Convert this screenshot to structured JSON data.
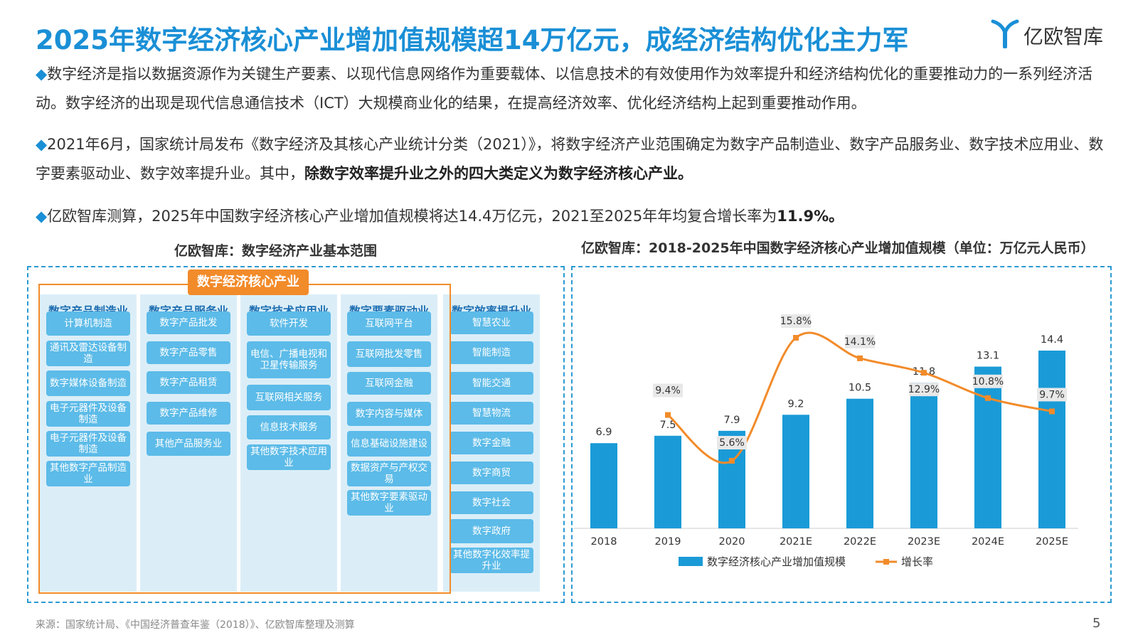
{
  "title": "2025年数字经济核心产业增加值规模超14万亿元，成经济结构优化主力军",
  "logo": {
    "text": "亿欧智库",
    "icon": "yiou-logo-icon",
    "color": "#1a8fd6"
  },
  "paragraphs": [
    {
      "bullet": "◆",
      "text": "数字经济是指以数据资源作为关键生产要素、以现代信息网络作为重要载体、以信息技术的有效使用作为效率提升和经济结构优化的重要推动力的一系列经济活动。数字经济的出现是现代信息通信技术（ICT）大规模商业化的结果，在提高经济效率、优化经济结构上起到重要推动作用。",
      "bold": ""
    },
    {
      "bullet": "◆",
      "text": "2021年6月，国家统计局发布《数字经济及其核心产业统计分类（2021）》，将数字经济产业范围确定为数字产品制造业、数字产品服务业、数字技术应用业、数字要素驱动业、数字效率提升业。其中，",
      "bold": "除数字效率提升业之外的四大类定义为数字经济核心产业。"
    },
    {
      "bullet": "◆",
      "text": "亿欧智库测算，2025年中国数字经济核心产业增加值规模将达14.4万亿元，2021至2025年年均复合增长率为",
      "bold": "11.9%。"
    }
  ],
  "left_panel": {
    "title": "亿欧智库：数字经济产业基本范围",
    "core_label": "数字经济核心产业",
    "columns": [
      {
        "title": "数字产品制造业",
        "items": [
          "计算机制造",
          "通讯及雷达设备制造",
          "数字媒体设备制造",
          "电子元器件及设备制造",
          "电子元器件及设备制造",
          "其他数字产品制造业"
        ]
      },
      {
        "title": "数字产品服务业",
        "items": [
          "数字产品批发",
          "数字产品零售",
          "数字产品租赁",
          "数字产品维修",
          "其他产品服务业"
        ]
      },
      {
        "title": "数字技术应用业",
        "items": [
          "软件开发",
          "电信、广播电视和卫星传输服务",
          "互联网相关服务",
          "信息技术服务",
          "其他数字技术应用业"
        ]
      },
      {
        "title": "数字要素驱动业",
        "items": [
          "互联网平台",
          "互联网批发零售",
          "互联网金融",
          "数字内容与媒体",
          "信息基础设施建设",
          "数据资产与产权交易",
          "其他数字要素驱动业"
        ]
      },
      {
        "title": "数字效率提升业",
        "items": [
          "智慧农业",
          "智能制造",
          "智能交通",
          "智慧物流",
          "数字金融",
          "数字商贸",
          "数字社会",
          "数字政府",
          "其他数字化效率提升业"
        ]
      }
    ]
  },
  "right_panel": {
    "title": "亿欧智库：2018-2025年中国数字经济核心产业增加值规模（单位：万亿元人民币）"
  },
  "chart_data": {
    "type": "bar",
    "categories": [
      "2018",
      "2019",
      "2020",
      "2021E",
      "2022E",
      "2023E",
      "2024E",
      "2025E"
    ],
    "series": [
      {
        "name": "数字经济核心产业增加值规模",
        "type": "bar",
        "values": [
          6.9,
          7.5,
          7.9,
          9.2,
          10.5,
          11.8,
          13.1,
          14.4
        ],
        "color": "#1a9bd7"
      },
      {
        "name": "增长率",
        "type": "line",
        "values": [
          null,
          9.4,
          5.6,
          15.8,
          14.1,
          12.9,
          10.8,
          9.7
        ],
        "labels": [
          "",
          "9.4%",
          "5.6%",
          "15.8%",
          "14.1%",
          "12.9%",
          "10.8%",
          "9.7%"
        ],
        "color": "#f28b2a"
      }
    ],
    "legend_position": "bottom",
    "grid": false
  },
  "source": "来源：国家统计局、《中国经济普查年鉴（2018）》、亿欧智库整理及测算",
  "page_number": "5"
}
